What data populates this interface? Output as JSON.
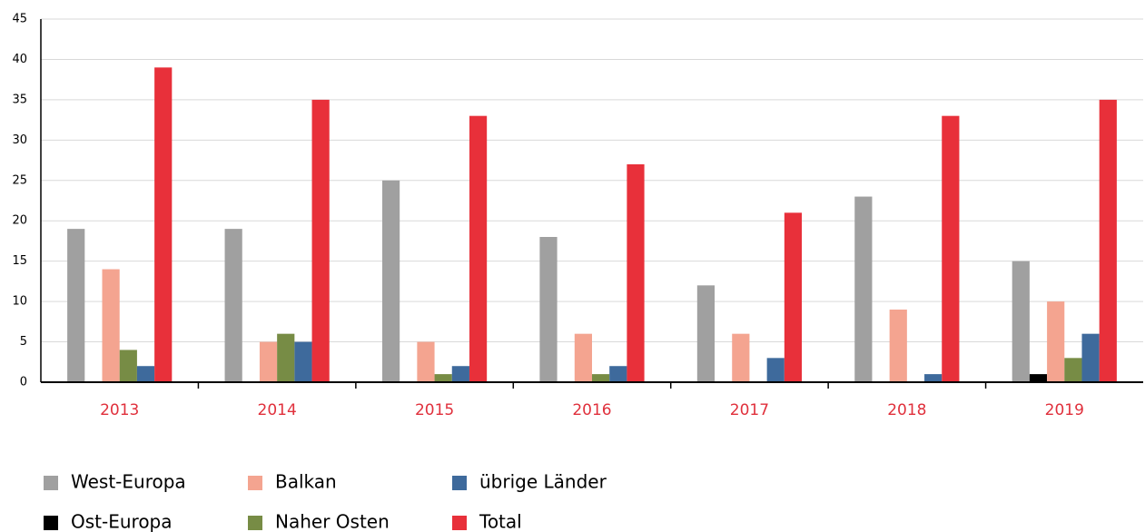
{
  "chart_data": {
    "type": "bar",
    "categories": [
      "2013",
      "2014",
      "2015",
      "2016",
      "2017",
      "2018",
      "2019"
    ],
    "series": [
      {
        "name": "West-Europa",
        "color": "#a0a0a0",
        "values": [
          19,
          19,
          25,
          18,
          12,
          23,
          15
        ]
      },
      {
        "name": "Ost-Europa",
        "color": "#000000",
        "values": [
          0,
          0,
          0,
          0,
          0,
          0,
          1
        ]
      },
      {
        "name": "Balkan",
        "color": "#f4a490",
        "values": [
          14,
          5,
          5,
          6,
          6,
          9,
          10
        ]
      },
      {
        "name": "Naher Osten",
        "color": "#778c45",
        "values": [
          4,
          6,
          1,
          1,
          0,
          0,
          3
        ]
      },
      {
        "name": "übrige Länder",
        "color": "#3e6a9c",
        "values": [
          2,
          5,
          2,
          2,
          3,
          1,
          6
        ]
      },
      {
        "name": "Total",
        "color": "#e8303a",
        "values": [
          39,
          35,
          33,
          27,
          21,
          33,
          35
        ]
      }
    ],
    "ylim": [
      0,
      45
    ],
    "yticks": [
      0,
      5,
      10,
      15,
      20,
      25,
      30,
      35,
      40,
      45
    ],
    "grid": true,
    "category_label_color": "#e0303c",
    "legend": "bottom-left"
  }
}
